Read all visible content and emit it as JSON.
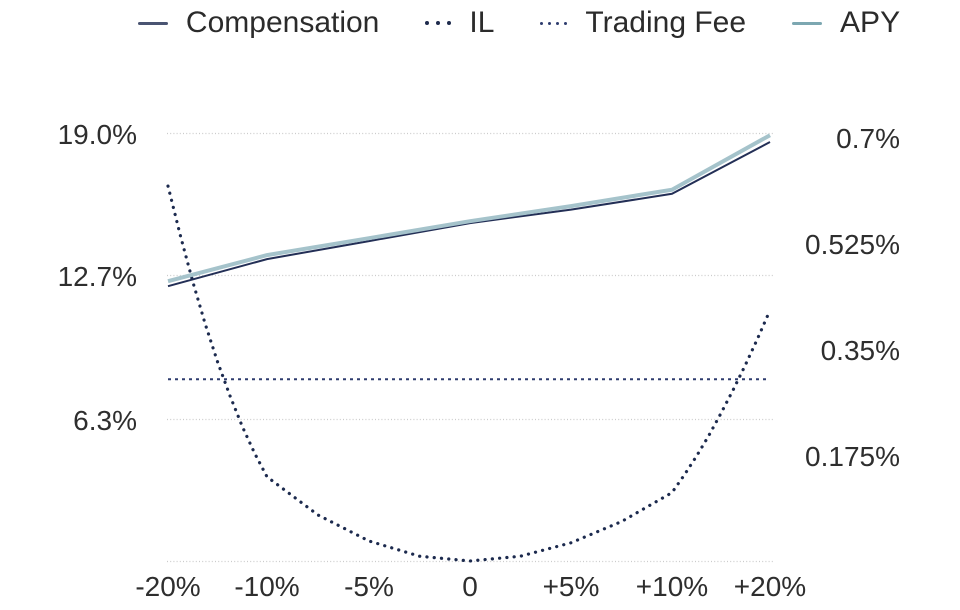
{
  "legend": {
    "items": [
      {
        "label": "Compensation",
        "marker": "dash",
        "marker_color": "#4a5472"
      },
      {
        "label": "IL",
        "marker": "dots3",
        "marker_color": "#1e2b4d"
      },
      {
        "label": "Trading Fee",
        "marker": "dots4",
        "marker_color": "#2e3c6e"
      },
      {
        "label": "APY",
        "marker": "dash",
        "marker_color": "#7ca7b1"
      }
    ]
  },
  "colors": {
    "grid": "#cbcbcb",
    "text": "#2e2e2e",
    "compensation": "#232f56",
    "il": "#1c2a4e",
    "trading_fee": "#2e3c6e",
    "apy": "#a5c3cb"
  },
  "chart_data": {
    "type": "line",
    "grid": true,
    "legend_position": "top",
    "x_axis": {
      "tick_labels": [
        "-20%",
        "-10%",
        "-5%",
        "0",
        "+5%",
        "+10%",
        "+20%"
      ],
      "tick_values": [
        -20,
        -10,
        -5,
        0,
        5,
        10,
        20
      ]
    },
    "left_axis": {
      "tick_labels": [
        "19.0%",
        "12.7%",
        "6.3%"
      ],
      "tick_values": [
        19.0,
        12.7,
        6.3
      ],
      "min": 0,
      "max": 19.0
    },
    "right_axis": {
      "tick_labels": [
        "0.7%",
        "0.525%",
        "0.35%",
        "0.175%"
      ],
      "tick_values": [
        0.7,
        0.525,
        0.35,
        0.175
      ],
      "min": 0,
      "max": 0.7
    },
    "series": [
      {
        "name": "Compensation",
        "axis": "left",
        "style": "solid",
        "color": "#232f56",
        "width": 2,
        "x": [
          -20,
          -10,
          -5,
          0,
          5,
          10,
          20
        ],
        "y": [
          12.2,
          13.4,
          14.2,
          15.0,
          15.6,
          16.3,
          18.6
        ]
      },
      {
        "name": "IL",
        "axis": "right",
        "style": "dotted",
        "color": "#1c2a4e",
        "width": 3.2,
        "x": [
          -20,
          -18.75,
          -17.5,
          -16.25,
          -15,
          -13.75,
          -12.5,
          -11.25,
          -10,
          -7.5,
          -5,
          -2.5,
          0,
          2.5,
          5,
          7.5,
          10,
          11.25,
          12.5,
          13.75,
          15,
          16.25,
          17.5,
          18.75,
          20
        ],
        "y": [
          0.619,
          0.537,
          0.461,
          0.392,
          0.329,
          0.273,
          0.222,
          0.178,
          0.139,
          0.076,
          0.033,
          0.008,
          0.0,
          0.008,
          0.03,
          0.065,
          0.113,
          0.142,
          0.173,
          0.207,
          0.244,
          0.283,
          0.324,
          0.368,
          0.414
        ]
      },
      {
        "name": "Trading Fee",
        "axis": "right",
        "style": "dashed",
        "color": "#2e3c6e",
        "width": 2,
        "x": [
          -20,
          20
        ],
        "y": [
          0.3,
          0.3
        ]
      },
      {
        "name": "APY",
        "axis": "right",
        "style": "solid",
        "color": "#a5c3cb",
        "width": 4,
        "x": [
          -20,
          -10,
          -5,
          0,
          5,
          10,
          20
        ],
        "y": [
          0.462,
          0.505,
          0.533,
          0.561,
          0.586,
          0.613,
          0.703
        ]
      }
    ]
  }
}
